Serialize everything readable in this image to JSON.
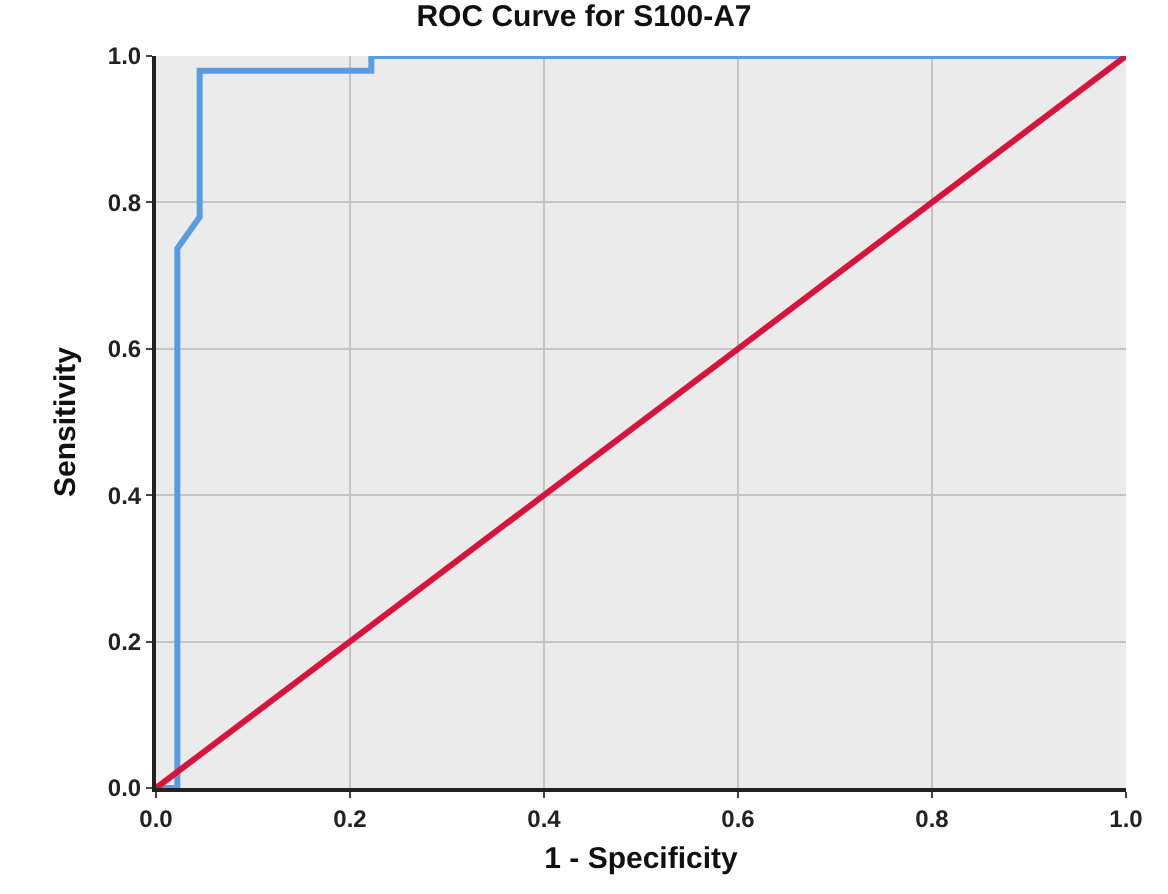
{
  "chart_data": {
    "type": "line",
    "title": "ROC Curve for S100-A7",
    "xlabel": "1 - Specificity",
    "ylabel": "Sensitivity",
    "series": [
      {
        "color": "#5b9be0",
        "x": [
          0,
          0.022,
          0.022,
          0.045,
          0.045,
          0.222,
          0.222,
          1
        ],
        "values": [
          0,
          0,
          0.737,
          0.78,
          0.98,
          0.98,
          1,
          1
        ]
      },
      {
        "color": "#d6143c",
        "x": [
          0,
          1
        ],
        "values": [
          0,
          1
        ]
      }
    ],
    "xlim": [
      0,
      1
    ],
    "ylim": [
      0,
      1
    ],
    "xticks": [
      {
        "value": 0,
        "label": "0.0"
      },
      0.2,
      0.4,
      0.6,
      0.8,
      {
        "value": 1,
        "label": "1.0"
      }
    ],
    "yticks": [
      {
        "value": 0,
        "label": "0.0"
      },
      0.2,
      0.4,
      0.6,
      0.8,
      {
        "value": 1,
        "label": "1.0"
      }
    ],
    "grid": true,
    "marker": "none",
    "line_style": "solid"
  }
}
